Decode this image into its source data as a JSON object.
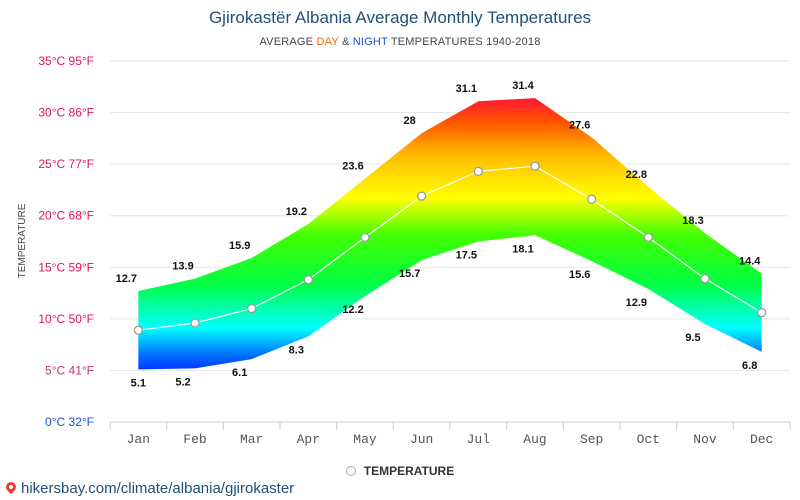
{
  "header": {
    "title": "Gjirokastër Albania Average Monthly Temperatures",
    "subtitle_prefix": "AVERAGE ",
    "subtitle_day": "DAY",
    "subtitle_amp": " & ",
    "subtitle_night": "NIGHT",
    "subtitle_suffix": " TEMPERATURES 1940-2018"
  },
  "legend": {
    "label": "TEMPERATURE"
  },
  "source": {
    "text": "hikersbay.com/climate/albania/gjirokaster",
    "icon": "map-pin-icon"
  },
  "colors": {
    "title": "#1f4e79",
    "day": "#ff6600",
    "night": "#1a4fd6",
    "tick_warm": "#e0115f",
    "tick_cold": "#1a4fd6"
  },
  "chart_data": {
    "type": "area",
    "categories": [
      "Jan",
      "Feb",
      "Mar",
      "Apr",
      "May",
      "Jun",
      "Jul",
      "Aug",
      "Sep",
      "Oct",
      "Nov",
      "Dec"
    ],
    "series": [
      {
        "values": [
          12.7,
          13.9,
          15.9,
          19.2,
          23.6,
          28,
          31.1,
          31.4,
          27.6,
          22.8,
          18.3,
          14.4
        ]
      },
      {
        "values": [
          5.1,
          5.2,
          6.1,
          8.3,
          12.2,
          15.7,
          17.5,
          18.1,
          15.6,
          12.9,
          9.5,
          6.8
        ]
      },
      {
        "name": "TEMPERATURE",
        "values": [
          8.9,
          9.6,
          11.0,
          13.8,
          17.9,
          21.9,
          24.3,
          24.8,
          21.6,
          17.9,
          13.9,
          10.6
        ]
      }
    ],
    "data_labels_day": [
      "12.7",
      "13.9",
      "15.9",
      "19.2",
      "23.6",
      "28",
      "31.1",
      "31.4",
      "27.6",
      "22.8",
      "18.3",
      "14.4"
    ],
    "data_labels_night": [
      "5.1",
      "5.2",
      "6.1",
      "8.3",
      "12.2",
      "15.7",
      "17.5",
      "18.1",
      "15.6",
      "12.9",
      "9.5",
      "6.8"
    ],
    "y_ticks": [
      {
        "value": 0,
        "label": "0°C 32°F"
      },
      {
        "value": 5,
        "label": "5°C 41°F"
      },
      {
        "value": 10,
        "label": "10°C 50°F"
      },
      {
        "value": 15,
        "label": "15°C 59°F"
      },
      {
        "value": 20,
        "label": "20°C 68°F"
      },
      {
        "value": 25,
        "label": "25°C 77°F"
      },
      {
        "value": 30,
        "label": "30°C 86°F"
      },
      {
        "value": 35,
        "label": "35°C 95°F"
      }
    ],
    "ylabel": "TEMPERATURE",
    "ylim": [
      0,
      35
    ],
    "grid": true,
    "legend_position": "bottom"
  }
}
